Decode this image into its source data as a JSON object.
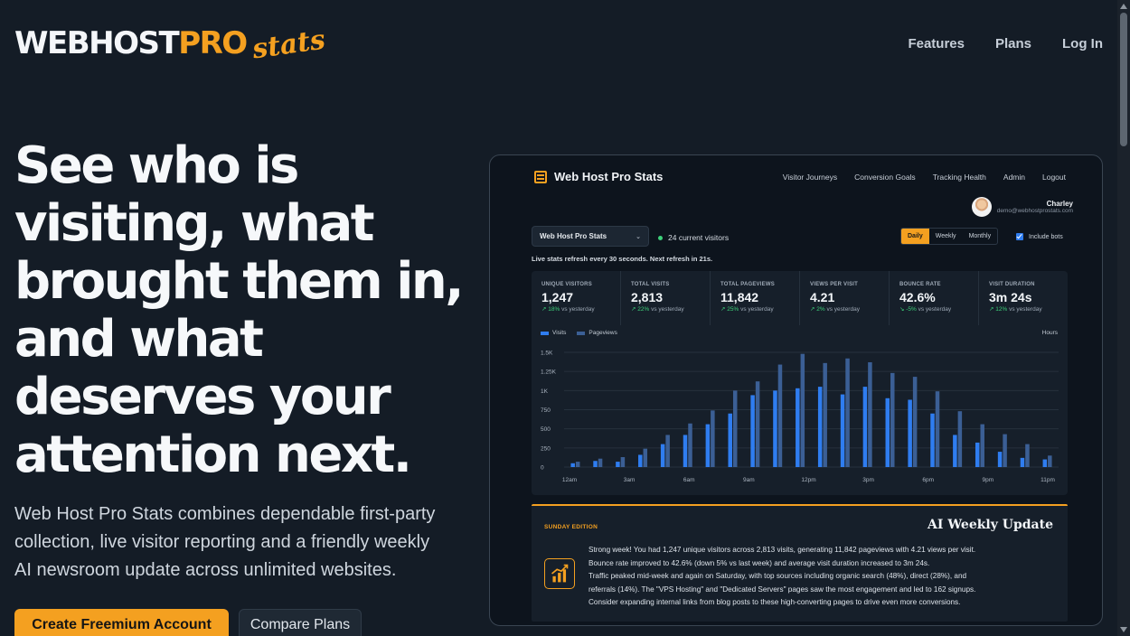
{
  "header": {
    "logo": {
      "part1": "WEBHOST",
      "part2": "PRO",
      "part3": "stats"
    },
    "nav": [
      "Features",
      "Plans",
      "Log In"
    ]
  },
  "hero": {
    "title": "See who is visiting, what brought them in, and what deserves your attention next.",
    "subtitle": "Web Host Pro Stats combines dependable first-party collection, live visitor reporting and a friendly weekly AI newsroom update across unlimited websites.",
    "cta_primary": "Create Freemium Account",
    "cta_secondary": "Compare Plans"
  },
  "dashboard": {
    "brand": "Web Host Pro Stats",
    "nav": [
      "Visitor Journeys",
      "Conversion Goals",
      "Tracking Health",
      "Admin",
      "Logout"
    ],
    "user": {
      "name": "Charley",
      "email": "demo@webhostprostats.com"
    },
    "site_select": "Web Host Pro Stats",
    "current_visitors": "24 current visitors",
    "refresh_note": "Live stats refresh every 30 seconds. Next refresh in 21s.",
    "period_options": [
      "Daily",
      "Weekly",
      "Monthly"
    ],
    "period_selected": "Daily",
    "include_bots_label": "Include bots",
    "include_bots_checked": true,
    "stats": [
      {
        "label": "UNIQUE VISITORS",
        "value": "1,247",
        "delta": "↗ 18%",
        "suffix": "vs yesterday"
      },
      {
        "label": "TOTAL VISITS",
        "value": "2,813",
        "delta": "↗ 22%",
        "suffix": "vs yesterday"
      },
      {
        "label": "TOTAL PAGEVIEWS",
        "value": "11,842",
        "delta": "↗ 25%",
        "suffix": "vs yesterday"
      },
      {
        "label": "VIEWS PER VISIT",
        "value": "4.21",
        "delta": "↗ 2%",
        "suffix": "vs yesterday"
      },
      {
        "label": "BOUNCE RATE",
        "value": "42.6%",
        "delta": "↘ -5%",
        "suffix": "vs yesterday"
      },
      {
        "label": "VISIT DURATION",
        "value": "3m 24s",
        "delta": "↗ 12%",
        "suffix": "vs yesterday"
      }
    ],
    "chart_legend": {
      "visits": "Visits",
      "pageviews": "Pageviews",
      "hours": "Hours"
    },
    "colors": {
      "visits": "#2f7df0",
      "pageviews": "#3b5f95",
      "accent": "#f4a020"
    },
    "ai": {
      "edition": "SUNDAY EDITION",
      "title": "AI Weekly Update",
      "lines": [
        "Strong week! You had 1,247 unique visitors across 2,813 visits, generating 11,842 pageviews with 4.21 views per visit.",
        "Bounce rate improved to 42.6% (down 5% vs last week) and average visit duration increased to 3m 24s.",
        "Traffic peaked mid-week and again on Saturday, with top sources including organic search (48%), direct (28%), and",
        "referrals (14%). The \"VPS Hosting\" and \"Dedicated Servers\" pages saw the most engagement and led to 162 signups.",
        "Consider expanding internal links from blog posts to these high-converting pages to drive even more conversions."
      ]
    }
  },
  "chart_data": {
    "type": "bar",
    "y_ticks": [
      "0",
      "250",
      "500",
      "750",
      "1K",
      "1.25K",
      "1.5K"
    ],
    "x_labels": [
      "12am",
      "3am",
      "6am",
      "9am",
      "12pm",
      "3pm",
      "6pm",
      "9pm",
      "11pm"
    ],
    "ylim": [
      0,
      1500
    ],
    "series": [
      {
        "name": "Visits",
        "values": [
          50,
          80,
          70,
          160,
          300,
          420,
          560,
          700,
          940,
          1000,
          1030,
          1050,
          950,
          1050,
          900,
          880,
          700,
          420,
          320,
          200,
          120,
          100
        ]
      },
      {
        "name": "Pageviews",
        "values": [
          70,
          110,
          130,
          240,
          420,
          570,
          740,
          1000,
          1120,
          1340,
          1480,
          1360,
          1420,
          1370,
          1230,
          1180,
          990,
          730,
          560,
          430,
          300,
          150
        ]
      }
    ]
  }
}
